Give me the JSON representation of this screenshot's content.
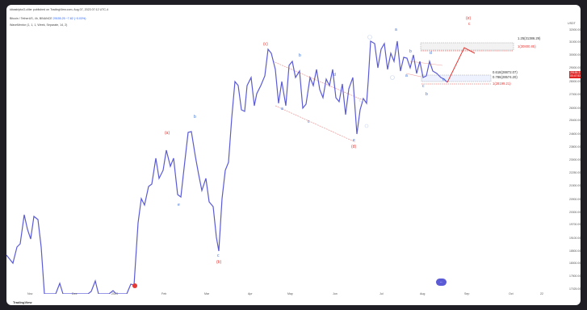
{
  "header": {
    "line1": "kibastriptoO-cliler published on TradingView.com, Aug 07, 2023 07:12 UTC-4",
    "symbol": "Bitcoin / TetherUS, 4h, BINANCE",
    "ohlc": "29155.25 −7.82 (−0.03%)",
    "indicator": "WaveMentor (1, 1, 1, Week, Separate, 14, 2)"
  },
  "currency": "USDT",
  "price_ticks": [
    "32000.00",
    "31000.00",
    "30000.00",
    "29000.00",
    "28000.00",
    "27000.00",
    "26000.00",
    "25400.00",
    "24600.00",
    "23800.00",
    "23000.00",
    "22250.00",
    "21500.00",
    "20900.00",
    "20300.00",
    "19700.00",
    "19100.00",
    "18500.00",
    "18000.00",
    "17500.00",
    "17025.00"
  ],
  "time_ticks": [
    "Nov",
    "Dec",
    "2023",
    "Feb",
    "Mar",
    "Apr",
    "May",
    "Jun",
    "Jul",
    "Aug",
    "Sep",
    "Oct",
    "22"
  ],
  "current_price": {
    "value": "29155.25",
    "sub": "00:47:53"
  },
  "fib_levels": {
    "l1": "1.25(31386.29)",
    "l2": "1(30800.85)",
    "l3": "0.618(28872.07)",
    "l4": "0.786(28574.20)",
    "l5": "1(28199.21)"
  },
  "wave_labels": {
    "a": "a",
    "b": "b",
    "c": "c",
    "d": "d",
    "e": "e",
    "paren_a": "(a)",
    "paren_b": "(b)",
    "paren_c": "(c)",
    "paren_d": "(d)",
    "paren_e": "(e)"
  },
  "footer": "TradingView",
  "colors": {
    "price_line": "#5b5bd6",
    "projection": "#e53935",
    "wave_blue": "#3b6fd0",
    "wave_red": "#e53935",
    "channel": "#f0a0a0"
  },
  "chart_data": {
    "type": "line",
    "title": "",
    "xlabel": "",
    "ylabel": "",
    "ylim": [
      17025,
      32500
    ],
    "x": [
      "Oct",
      "Nov",
      "Dec",
      "Jan",
      "Feb",
      "Mar",
      "Apr",
      "May",
      "Jun",
      "Jul",
      "Aug"
    ],
    "series": [
      {
        "values": [
          19600,
          20800,
          16800,
          16600,
          23800,
          22300,
          28500,
          27400,
          25400,
          31000,
          29155
        ]
      }
    ]
  }
}
